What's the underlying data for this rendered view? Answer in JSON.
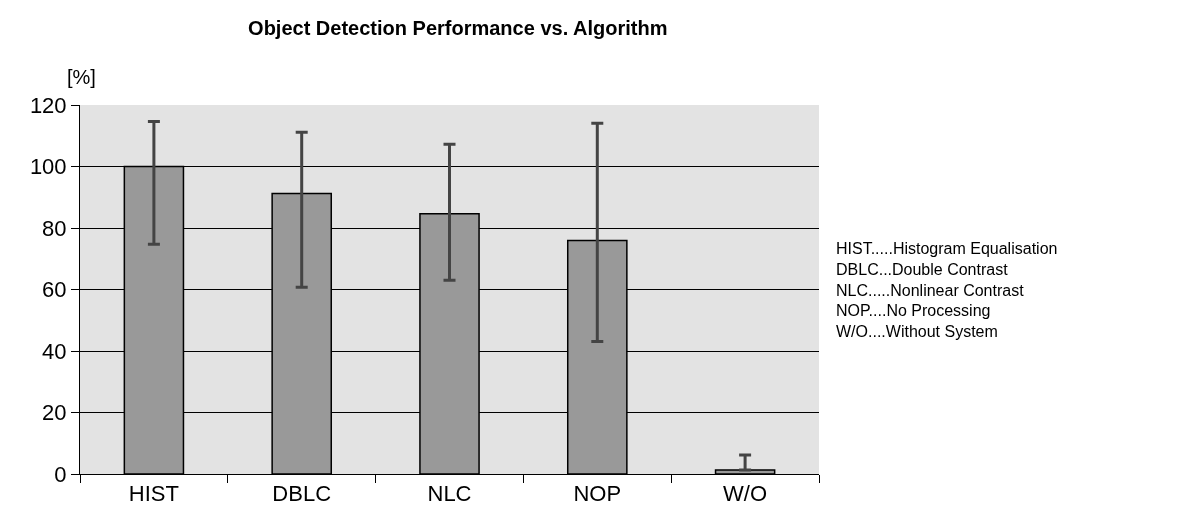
{
  "chart_data": {
    "type": "bar",
    "title": "Object Detection Performance vs. Algorithm",
    "ylabel": "[%]",
    "categories": [
      "HIST",
      "DBLC",
      "NLC",
      "NOP",
      "W/O"
    ],
    "values": [
      100,
      91.2,
      84.6,
      75.9,
      1.3
    ],
    "errors": [
      [
        74.7,
        114.6
      ],
      [
        60.7,
        111.1
      ],
      [
        63.0,
        107.2
      ],
      [
        43.1,
        114.1
      ],
      [
        1.3,
        6.2
      ]
    ],
    "color": "#999999",
    "ylim": [
      0,
      120
    ],
    "yticks": [
      0,
      20,
      40,
      60,
      80,
      100,
      120
    ],
    "grid": "y",
    "annotations": [
      "HIST.....Histogram Equalisation\nDBLC...Double Contrast\nNLC.....Nonlinear Contrast\nNOP....No Processing\nW/O....Without System"
    ]
  }
}
